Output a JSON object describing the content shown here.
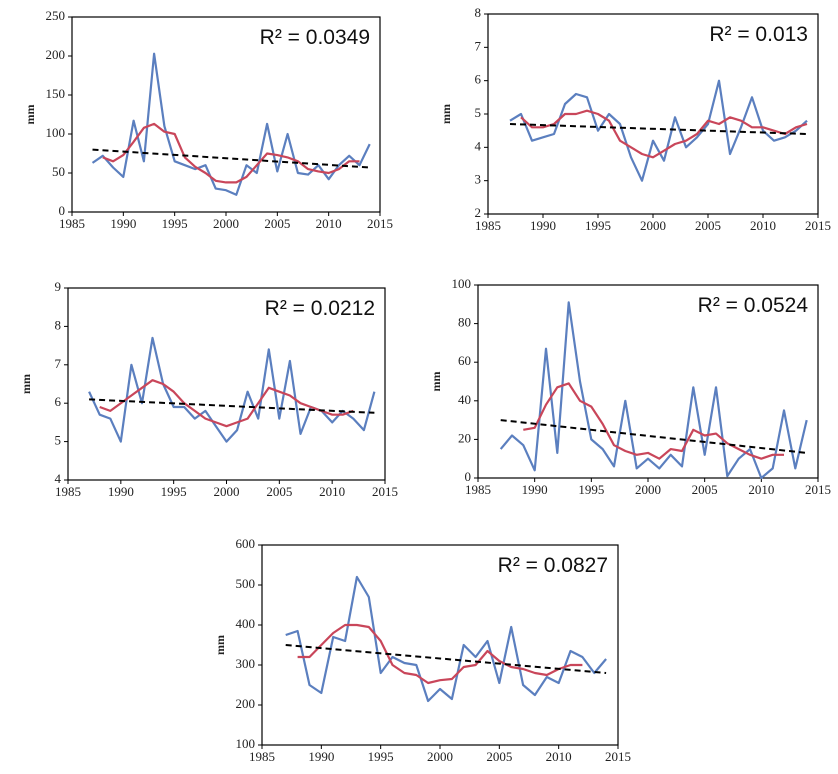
{
  "chart_data": [
    {
      "type": "line",
      "annotation": "R² = 0.0349",
      "y_label": "mm",
      "x": [
        1987,
        1988,
        1989,
        1990,
        1991,
        1992,
        1993,
        1994,
        1995,
        1996,
        1997,
        1998,
        1999,
        2000,
        2001,
        2002,
        2003,
        2004,
        2005,
        2006,
        2007,
        2008,
        2009,
        2010,
        2011,
        2012,
        2013,
        2014
      ],
      "xlim": [
        1985,
        2015
      ],
      "xticks": [
        1985,
        1990,
        1995,
        2000,
        2005,
        2010,
        2015
      ],
      "ylim": [
        0,
        250
      ],
      "yticks": [
        0,
        50,
        100,
        150,
        200,
        250
      ],
      "series": [
        {
          "color": "#5b7fbf",
          "values": [
            63,
            72,
            57,
            45,
            117,
            65,
            203,
            110,
            65,
            60,
            55,
            60,
            30,
            28,
            22,
            60,
            50,
            113,
            52,
            100,
            50,
            48,
            60,
            42,
            60,
            72,
            60,
            87
          ]
        },
        {
          "color": "#c9465a",
          "values": [
            null,
            70,
            65,
            73,
            90,
            108,
            113,
            103,
            100,
            70,
            58,
            50,
            40,
            38,
            38,
            45,
            60,
            75,
            73,
            70,
            65,
            55,
            52,
            50,
            55,
            65,
            65,
            null
          ]
        },
        {
          "color": "#000000",
          "dashed": true,
          "x": [
            1987,
            2014
          ],
          "values": [
            80,
            57
          ]
        }
      ]
    },
    {
      "type": "line",
      "annotation": "R² = 0.013",
      "y_label": "mm",
      "x": [
        1987,
        1988,
        1989,
        1990,
        1991,
        1992,
        1993,
        1994,
        1995,
        1996,
        1997,
        1998,
        1999,
        2000,
        2001,
        2002,
        2003,
        2004,
        2005,
        2006,
        2007,
        2008,
        2009,
        2010,
        2011,
        2012,
        2013,
        2014
      ],
      "xlim": [
        1985,
        2015
      ],
      "xticks": [
        1985,
        1990,
        1995,
        2000,
        2005,
        2010,
        2015
      ],
      "ylim": [
        2,
        8
      ],
      "yticks": [
        2,
        3,
        4,
        5,
        6,
        7,
        8
      ],
      "series": [
        {
          "color": "#5b7fbf",
          "values": [
            4.8,
            5.0,
            4.2,
            4.3,
            4.4,
            5.3,
            5.6,
            5.5,
            4.5,
            5.0,
            4.7,
            3.7,
            3.0,
            4.2,
            3.6,
            4.9,
            4.0,
            4.3,
            4.7,
            6.0,
            3.8,
            4.6,
            5.5,
            4.5,
            4.2,
            4.3,
            4.5,
            4.8
          ]
        },
        {
          "color": "#c9465a",
          "values": [
            null,
            4.9,
            4.6,
            4.6,
            4.7,
            5.0,
            5.0,
            5.1,
            5.0,
            4.8,
            4.2,
            4.0,
            3.8,
            3.7,
            3.9,
            4.1,
            4.2,
            4.4,
            4.8,
            4.7,
            4.9,
            4.8,
            4.6,
            4.6,
            4.5,
            4.4,
            4.6,
            4.7
          ]
        },
        {
          "color": "#000000",
          "dashed": true,
          "x": [
            1987,
            2014
          ],
          "values": [
            4.7,
            4.4
          ]
        }
      ]
    },
    {
      "type": "line",
      "annotation": "R² = 0.0212",
      "y_label": "mm",
      "x": [
        1987,
        1988,
        1989,
        1990,
        1991,
        1992,
        1993,
        1994,
        1995,
        1996,
        1997,
        1998,
        1999,
        2000,
        2001,
        2002,
        2003,
        2004,
        2005,
        2006,
        2007,
        2008,
        2009,
        2010,
        2011,
        2012,
        2013,
        2014
      ],
      "xlim": [
        1985,
        2015
      ],
      "xticks": [
        1985,
        1990,
        1995,
        2000,
        2005,
        2010,
        2015
      ],
      "ylim": [
        4,
        9
      ],
      "yticks": [
        4,
        5,
        6,
        7,
        8,
        9
      ],
      "series": [
        {
          "color": "#5b7fbf",
          "values": [
            6.3,
            5.7,
            5.6,
            5.0,
            7.0,
            6.0,
            7.7,
            6.5,
            5.9,
            5.9,
            5.6,
            5.8,
            5.4,
            5.0,
            5.3,
            6.3,
            5.6,
            7.4,
            5.6,
            7.1,
            5.2,
            5.9,
            5.8,
            5.5,
            5.8,
            5.6,
            5.3,
            6.3
          ]
        },
        {
          "color": "#c9465a",
          "values": [
            null,
            5.9,
            5.8,
            6.0,
            6.2,
            6.4,
            6.6,
            6.5,
            6.3,
            6.0,
            5.8,
            5.6,
            5.5,
            5.4,
            5.5,
            5.6,
            6.0,
            6.4,
            6.3,
            6.2,
            6.0,
            5.9,
            5.8,
            5.7,
            5.7,
            5.8,
            null,
            null
          ]
        },
        {
          "color": "#000000",
          "dashed": true,
          "x": [
            1987,
            2014
          ],
          "values": [
            6.1,
            5.75
          ]
        }
      ]
    },
    {
      "type": "line",
      "annotation": "R² = 0.0524",
      "y_label": "mm",
      "x": [
        1987,
        1988,
        1989,
        1990,
        1991,
        1992,
        1993,
        1994,
        1995,
        1996,
        1997,
        1998,
        1999,
        2000,
        2001,
        2002,
        2003,
        2004,
        2005,
        2006,
        2007,
        2008,
        2009,
        2010,
        2011,
        2012,
        2013,
        2014
      ],
      "xlim": [
        1985,
        2015
      ],
      "xticks": [
        1985,
        1990,
        1995,
        2000,
        2005,
        2010,
        2015
      ],
      "ylim": [
        0,
        100
      ],
      "yticks": [
        0,
        20,
        40,
        60,
        80,
        100
      ],
      "series": [
        {
          "color": "#5b7fbf",
          "values": [
            15,
            22,
            17,
            4,
            67,
            13,
            91,
            50,
            20,
            15,
            6,
            40,
            5,
            10,
            5,
            12,
            6,
            47,
            12,
            47,
            1,
            10,
            15,
            0,
            5,
            35,
            5,
            30
          ]
        },
        {
          "color": "#c9465a",
          "values": [
            null,
            null,
            25,
            26,
            38,
            47,
            49,
            40,
            37,
            28,
            17,
            14,
            12,
            13,
            10,
            15,
            14,
            25,
            22,
            23,
            18,
            15,
            12,
            10,
            12,
            12,
            null,
            null
          ]
        },
        {
          "color": "#000000",
          "dashed": true,
          "x": [
            1987,
            2014
          ],
          "values": [
            30,
            13
          ]
        }
      ]
    },
    {
      "type": "line",
      "annotation": "R² = 0.0827",
      "y_label": "mm",
      "x": [
        1987,
        1988,
        1989,
        1990,
        1991,
        1992,
        1993,
        1994,
        1995,
        1996,
        1997,
        1998,
        1999,
        2000,
        2001,
        2002,
        2003,
        2004,
        2005,
        2006,
        2007,
        2008,
        2009,
        2010,
        2011,
        2012,
        2013,
        2014
      ],
      "xlim": [
        1985,
        2015
      ],
      "xticks": [
        1985,
        1990,
        1995,
        2000,
        2005,
        2010,
        2015
      ],
      "ylim": [
        100,
        600
      ],
      "yticks": [
        100,
        200,
        300,
        400,
        500,
        600
      ],
      "series": [
        {
          "color": "#5b7fbf",
          "values": [
            375,
            385,
            250,
            230,
            370,
            360,
            520,
            470,
            280,
            320,
            305,
            300,
            210,
            240,
            215,
            350,
            320,
            360,
            255,
            395,
            250,
            225,
            270,
            255,
            335,
            320,
            280,
            315
          ]
        },
        {
          "color": "#c9465a",
          "values": [
            null,
            320,
            320,
            350,
            380,
            400,
            400,
            395,
            360,
            300,
            280,
            275,
            255,
            262,
            265,
            295,
            300,
            335,
            310,
            295,
            290,
            280,
            275,
            290,
            300,
            300,
            null,
            null
          ]
        },
        {
          "color": "#000000",
          "dashed": true,
          "x": [
            1987,
            2014
          ],
          "values": [
            350,
            280
          ]
        }
      ]
    }
  ]
}
